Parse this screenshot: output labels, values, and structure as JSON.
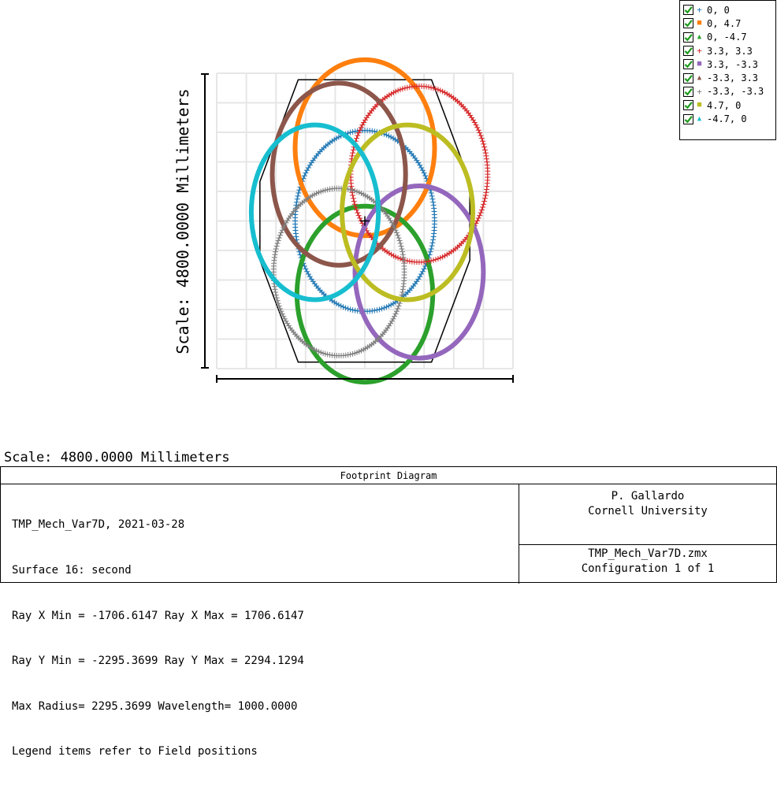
{
  "chart_data": {
    "type": "scatter",
    "title": "Footprint Diagram",
    "ylabel": "Scale: 4800.0000 Millimeters",
    "xlabel": "",
    "units": "Millimeters",
    "scale_mm": 4800.0,
    "xlim": [
      -2400,
      2400
    ],
    "ylim": [
      -2400,
      2400
    ],
    "grid": true,
    "legend_placement": "top-right",
    "series": [
      {
        "name": "0, 0",
        "marker": "plus",
        "color": "#1f77b4",
        "center": [
          0,
          0
        ],
        "semi_axes": [
          1130,
          1470
        ]
      },
      {
        "name": "0, 4.7",
        "marker": "square",
        "color": "#ff7f0e",
        "center": [
          0,
          1190
        ],
        "semi_axes": [
          1130,
          1430
        ]
      },
      {
        "name": "0, -4.7",
        "marker": "triangle",
        "color": "#2ca02c",
        "center": [
          0,
          -1190
        ],
        "semi_axes": [
          1100,
          1430
        ]
      },
      {
        "name": "3.3, 3.3",
        "marker": "plus",
        "color": "#d62728",
        "center": [
          880,
          760
        ],
        "semi_axes": [
          1110,
          1430
        ]
      },
      {
        "name": "3.3, -3.3",
        "marker": "square",
        "color": "#9467bd",
        "center": [
          880,
          -830
        ],
        "semi_axes": [
          1040,
          1400
        ]
      },
      {
        "name": "-3.3, 3.3",
        "marker": "triangle",
        "color": "#8c564b",
        "center": [
          -420,
          760
        ],
        "semi_axes": [
          1080,
          1480
        ]
      },
      {
        "name": "-3.3, -3.3",
        "marker": "plus",
        "color": "#7f7f7f",
        "center": [
          -420,
          -830
        ],
        "semi_axes": [
          1060,
          1360
        ]
      },
      {
        "name": "4.7, 0",
        "marker": "square",
        "color": "#bcbd22",
        "center": [
          690,
          140
        ],
        "semi_axes": [
          1060,
          1420
        ]
      },
      {
        "name": "-4.7, 0",
        "marker": "triangle",
        "color": "#17becf",
        "center": [
          -810,
          140
        ],
        "semi_axes": [
          1030,
          1420
        ]
      }
    ],
    "aperture_octagon_mm": [
      [
        -1700,
        640
      ],
      [
        -1700,
        -640
      ],
      [
        -1080,
        -2295
      ],
      [
        1080,
        -2295
      ],
      [
        1700,
        -640
      ],
      [
        1700,
        640
      ],
      [
        1080,
        2295
      ],
      [
        -1080,
        2295
      ]
    ],
    "chief_center_marker": [
      0,
      0
    ]
  },
  "scale_caption": "Scale: 4800.0000 Millimeters",
  "info": {
    "title": "Footprint Diagram",
    "left_lines": [
      "TMP_Mech_Var7D, 2021-03-28",
      "Surface 16: second",
      "Ray X Min = -1706.6147 Ray X Max = 1706.6147",
      "Ray Y Min = -2295.3699 Ray Y Max = 2294.1294",
      "Max Radius= 2295.3699 Wavelength= 1000.0000",
      "Legend items refer to Field positions"
    ],
    "author": "P. Gallardo",
    "institution": "Cornell University",
    "file": "TMP_Mech_Var7D.zmx",
    "configuration": "Configuration 1 of 1"
  }
}
